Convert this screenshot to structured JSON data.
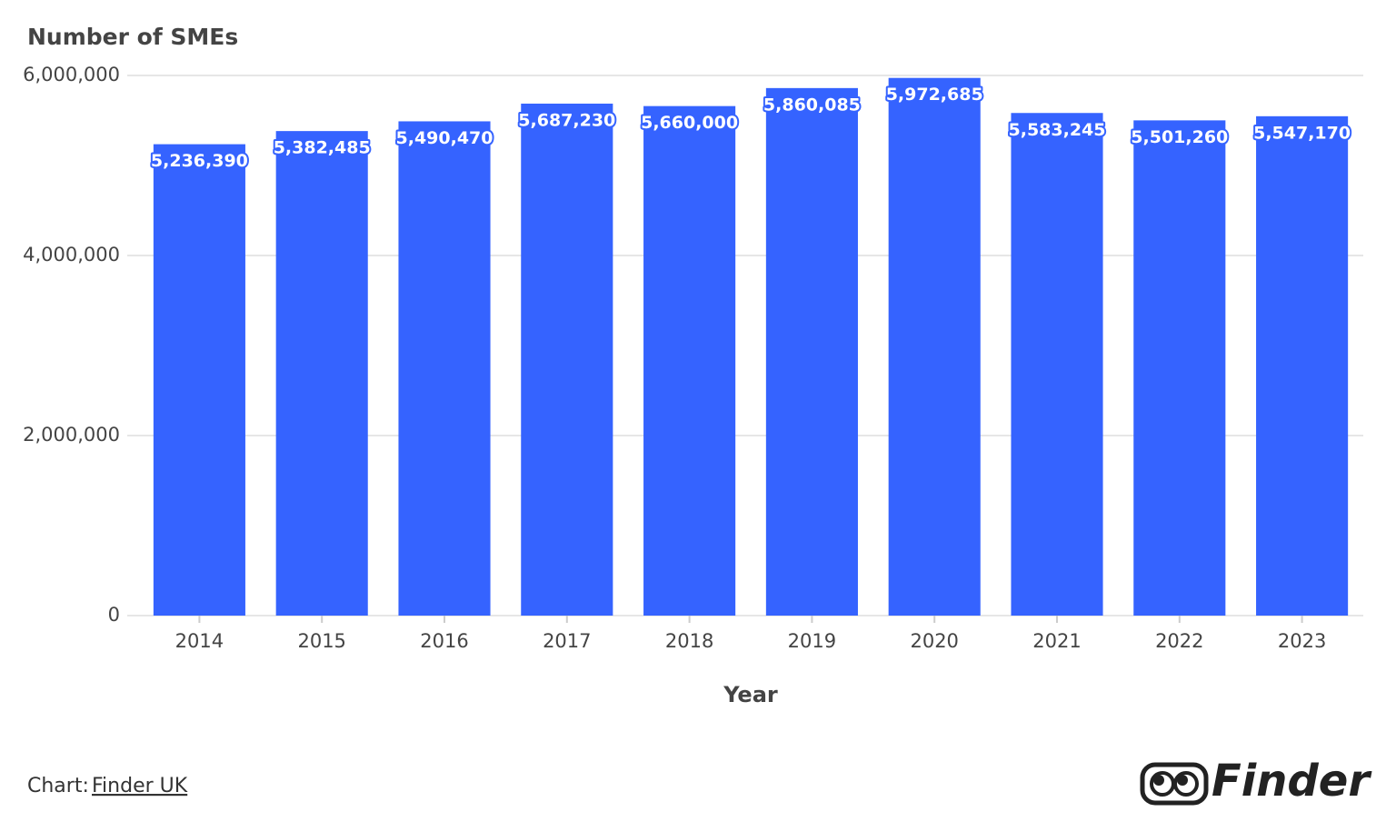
{
  "chart_data": {
    "type": "bar",
    "title": "Number of SMEs",
    "x_label": "Year",
    "categories": [
      "2014",
      "2015",
      "2016",
      "2017",
      "2018",
      "2019",
      "2020",
      "2021",
      "2022",
      "2023"
    ],
    "values": [
      5236390,
      5382485,
      5490470,
      5687230,
      5660000,
      5860085,
      5972685,
      5583245,
      5501260,
      5547170
    ],
    "value_labels": [
      "5,236,390",
      "5,382,485",
      "5,490,470",
      "5,687,230",
      "5,660,000",
      "5,860,085",
      "5,972,685",
      "5,583,245",
      "5,501,260",
      "5,547,170"
    ],
    "color": "#3563ff",
    "ylim": [
      0,
      6000000
    ],
    "yticks": [
      0,
      {
        "value": 2000000,
        "label": "2,000,000"
      },
      {
        "value": 4000000,
        "label": "4,000,000"
      },
      {
        "value": 6000000,
        "label": "6,000,000"
      }
    ],
    "grid": true
  },
  "footer": {
    "source_prefix": "Chart:",
    "source_link": "Finder UK",
    "logo": "Finder"
  }
}
